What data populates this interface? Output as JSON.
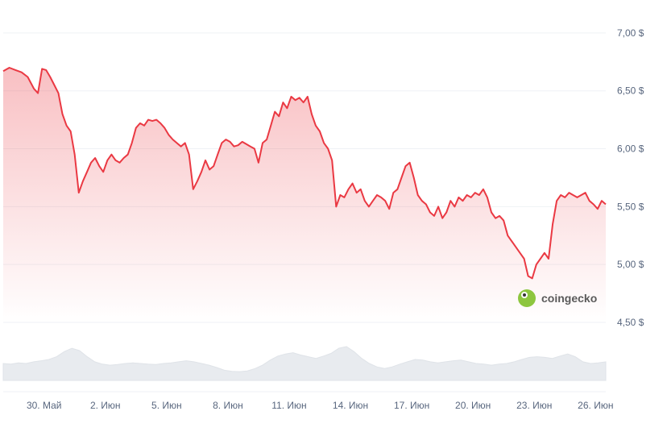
{
  "chart_data": {
    "type": "area",
    "y_unit": "$",
    "y_ticks": [
      "7,00 $",
      "6,50 $",
      "6,00 $",
      "5,50 $",
      "5,00 $",
      "4,50 $"
    ],
    "y_tick_values": [
      7.0,
      6.5,
      6.0,
      5.5,
      5.0,
      4.5
    ],
    "ylim": [
      4.5,
      7.25
    ],
    "x_ticks": [
      "30. Май",
      "2. Июн",
      "5. Июн",
      "8. Июн",
      "11. Июн",
      "14. Июн",
      "17. Июн",
      "20. Июн",
      "23. Июн",
      "26. Июн"
    ],
    "x_tick_days": [
      2,
      5,
      8,
      11,
      14,
      17,
      20,
      23,
      26,
      29
    ],
    "x_range_days": [
      0,
      29.5
    ],
    "series": [
      {
        "color": "#ea3943",
        "points": [
          [
            0.0,
            6.67
          ],
          [
            0.3,
            6.7
          ],
          [
            0.6,
            6.68
          ],
          [
            0.9,
            6.66
          ],
          [
            1.2,
            6.62
          ],
          [
            1.5,
            6.52
          ],
          [
            1.7,
            6.48
          ],
          [
            1.9,
            6.69
          ],
          [
            2.1,
            6.68
          ],
          [
            2.3,
            6.62
          ],
          [
            2.5,
            6.55
          ],
          [
            2.7,
            6.48
          ],
          [
            2.9,
            6.3
          ],
          [
            3.1,
            6.2
          ],
          [
            3.3,
            6.15
          ],
          [
            3.5,
            5.95
          ],
          [
            3.7,
            5.62
          ],
          [
            3.9,
            5.72
          ],
          [
            4.1,
            5.8
          ],
          [
            4.3,
            5.88
          ],
          [
            4.5,
            5.92
          ],
          [
            4.7,
            5.85
          ],
          [
            4.9,
            5.8
          ],
          [
            5.1,
            5.9
          ],
          [
            5.3,
            5.95
          ],
          [
            5.5,
            5.9
          ],
          [
            5.7,
            5.88
          ],
          [
            5.9,
            5.92
          ],
          [
            6.1,
            5.95
          ],
          [
            6.3,
            6.05
          ],
          [
            6.5,
            6.18
          ],
          [
            6.7,
            6.22
          ],
          [
            6.9,
            6.2
          ],
          [
            7.1,
            6.25
          ],
          [
            7.3,
            6.24
          ],
          [
            7.5,
            6.25
          ],
          [
            7.7,
            6.22
          ],
          [
            7.9,
            6.18
          ],
          [
            8.1,
            6.12
          ],
          [
            8.3,
            6.08
          ],
          [
            8.5,
            6.05
          ],
          [
            8.7,
            6.02
          ],
          [
            8.9,
            6.05
          ],
          [
            9.1,
            5.95
          ],
          [
            9.3,
            5.65
          ],
          [
            9.5,
            5.72
          ],
          [
            9.7,
            5.8
          ],
          [
            9.9,
            5.9
          ],
          [
            10.1,
            5.82
          ],
          [
            10.3,
            5.85
          ],
          [
            10.5,
            5.95
          ],
          [
            10.7,
            6.05
          ],
          [
            10.9,
            6.08
          ],
          [
            11.1,
            6.06
          ],
          [
            11.3,
            6.02
          ],
          [
            11.5,
            6.03
          ],
          [
            11.7,
            6.06
          ],
          [
            11.9,
            6.04
          ],
          [
            12.1,
            6.02
          ],
          [
            12.3,
            6.0
          ],
          [
            12.5,
            5.88
          ],
          [
            12.7,
            6.05
          ],
          [
            12.9,
            6.08
          ],
          [
            13.1,
            6.2
          ],
          [
            13.3,
            6.32
          ],
          [
            13.5,
            6.28
          ],
          [
            13.7,
            6.4
          ],
          [
            13.9,
            6.35
          ],
          [
            14.1,
            6.45
          ],
          [
            14.3,
            6.42
          ],
          [
            14.5,
            6.44
          ],
          [
            14.7,
            6.4
          ],
          [
            14.9,
            6.45
          ],
          [
            15.1,
            6.3
          ],
          [
            15.3,
            6.2
          ],
          [
            15.5,
            6.15
          ],
          [
            15.7,
            6.05
          ],
          [
            15.9,
            6.0
          ],
          [
            16.1,
            5.9
          ],
          [
            16.3,
            5.5
          ],
          [
            16.5,
            5.6
          ],
          [
            16.7,
            5.58
          ],
          [
            16.9,
            5.65
          ],
          [
            17.1,
            5.7
          ],
          [
            17.3,
            5.62
          ],
          [
            17.5,
            5.65
          ],
          [
            17.7,
            5.55
          ],
          [
            17.9,
            5.5
          ],
          [
            18.1,
            5.55
          ],
          [
            18.3,
            5.6
          ],
          [
            18.5,
            5.58
          ],
          [
            18.7,
            5.55
          ],
          [
            18.9,
            5.48
          ],
          [
            19.1,
            5.62
          ],
          [
            19.3,
            5.65
          ],
          [
            19.5,
            5.75
          ],
          [
            19.7,
            5.85
          ],
          [
            19.9,
            5.88
          ],
          [
            20.1,
            5.75
          ],
          [
            20.3,
            5.6
          ],
          [
            20.5,
            5.55
          ],
          [
            20.7,
            5.52
          ],
          [
            20.9,
            5.45
          ],
          [
            21.1,
            5.42
          ],
          [
            21.3,
            5.5
          ],
          [
            21.5,
            5.4
          ],
          [
            21.7,
            5.45
          ],
          [
            21.9,
            5.55
          ],
          [
            22.1,
            5.5
          ],
          [
            22.3,
            5.58
          ],
          [
            22.5,
            5.55
          ],
          [
            22.7,
            5.6
          ],
          [
            22.9,
            5.58
          ],
          [
            23.1,
            5.62
          ],
          [
            23.3,
            5.6
          ],
          [
            23.5,
            5.65
          ],
          [
            23.7,
            5.58
          ],
          [
            23.9,
            5.45
          ],
          [
            24.1,
            5.4
          ],
          [
            24.3,
            5.42
          ],
          [
            24.5,
            5.38
          ],
          [
            24.7,
            5.25
          ],
          [
            24.9,
            5.2
          ],
          [
            25.1,
            5.15
          ],
          [
            25.3,
            5.1
          ],
          [
            25.5,
            5.05
          ],
          [
            25.7,
            4.9
          ],
          [
            25.9,
            4.88
          ],
          [
            26.1,
            5.0
          ],
          [
            26.3,
            5.05
          ],
          [
            26.5,
            5.1
          ],
          [
            26.7,
            5.05
          ],
          [
            26.9,
            5.35
          ],
          [
            27.1,
            5.55
          ],
          [
            27.3,
            5.6
          ],
          [
            27.5,
            5.58
          ],
          [
            27.7,
            5.62
          ],
          [
            27.9,
            5.6
          ],
          [
            28.1,
            5.58
          ],
          [
            28.3,
            5.6
          ],
          [
            28.5,
            5.62
          ],
          [
            28.7,
            5.55
          ],
          [
            28.9,
            5.52
          ],
          [
            29.1,
            5.48
          ],
          [
            29.3,
            5.55
          ],
          [
            29.5,
            5.52
          ]
        ]
      }
    ],
    "volume": [
      0.5,
      0.48,
      0.52,
      0.5,
      0.55,
      0.58,
      0.62,
      0.7,
      0.85,
      0.95,
      0.88,
      0.7,
      0.55,
      0.48,
      0.45,
      0.47,
      0.5,
      0.52,
      0.5,
      0.48,
      0.47,
      0.5,
      0.52,
      0.55,
      0.58,
      0.55,
      0.5,
      0.45,
      0.38,
      0.3,
      0.27,
      0.26,
      0.28,
      0.35,
      0.45,
      0.6,
      0.72,
      0.78,
      0.82,
      0.75,
      0.7,
      0.65,
      0.72,
      0.8,
      0.95,
      1.0,
      0.85,
      0.65,
      0.5,
      0.4,
      0.35,
      0.4,
      0.48,
      0.55,
      0.62,
      0.6,
      0.55,
      0.52,
      0.55,
      0.58,
      0.6,
      0.55,
      0.5,
      0.48,
      0.45,
      0.48,
      0.5,
      0.55,
      0.62,
      0.68,
      0.7,
      0.68,
      0.65,
      0.72,
      0.78,
      0.7,
      0.55,
      0.5,
      0.52,
      0.55
    ],
    "grid": true,
    "legend": "none",
    "watermark": "coingecko"
  }
}
